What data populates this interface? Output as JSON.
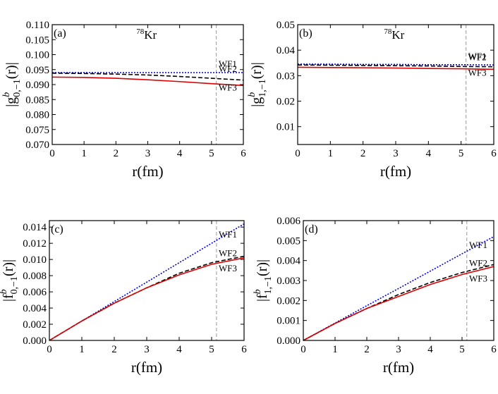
{
  "chart_data": [
    {
      "type": "line",
      "panel": "(a)",
      "annotation": {
        "sup": "78",
        "text": "Kr"
      },
      "ylabel": {
        "base": "|g",
        "sup": "b",
        "sub": "0,−1",
        "rest": "(r)|"
      },
      "xlabel": "r(fm)",
      "x": [
        0,
        1,
        2,
        3,
        4,
        5,
        6
      ],
      "xlim": [
        0,
        6
      ],
      "xticks": [
        0,
        1,
        2,
        3,
        4,
        5,
        6
      ],
      "ylim": [
        0.07,
        0.11
      ],
      "yticks": [
        {
          "value": 0.07,
          "label": "0.070"
        },
        0.075,
        {
          "value": 0.08,
          "label": "0.080"
        },
        0.085,
        {
          "value": 0.09,
          "label": "0.090"
        },
        0.095,
        {
          "value": 0.1,
          "label": "0.100"
        },
        0.105,
        {
          "value": 0.11,
          "label": "0.110"
        }
      ],
      "vline": 5.15,
      "series": [
        {
          "name": "WF1",
          "color": "#0000dd",
          "style": "dotted",
          "values": [
            0.094,
            0.094,
            0.094,
            0.094,
            0.094,
            0.094,
            0.094
          ]
        },
        {
          "name": "WF2",
          "color": "#000000",
          "style": "dashed",
          "values": [
            0.0938,
            0.0937,
            0.0935,
            0.0932,
            0.0927,
            0.0921,
            0.0915
          ]
        },
        {
          "name": "WF3",
          "color": "#dd0000",
          "style": "solid",
          "values": [
            0.0925,
            0.0924,
            0.0921,
            0.0916,
            0.091,
            0.0903,
            0.0897
          ]
        }
      ]
    },
    {
      "type": "line",
      "panel": "(b)",
      "annotation": {
        "sup": "78",
        "text": "Kr"
      },
      "ylabel": {
        "base": "|g",
        "sup": "b",
        "sub": "1,−1",
        "rest": "(r)|"
      },
      "xlabel": "r(fm)",
      "x": [
        0,
        1,
        2,
        3,
        4,
        5,
        6
      ],
      "xlim": [
        0,
        6
      ],
      "xticks": [
        0,
        1,
        2,
        3,
        4,
        5,
        6
      ],
      "ylim": [
        0.003,
        0.05
      ],
      "yticks": [
        0.01,
        0.02,
        0.03,
        0.04,
        0.05
      ],
      "vline": 5.15,
      "series": [
        {
          "name": "WF1",
          "color": "#0000dd",
          "style": "dotted",
          "values": [
            0.0345,
            0.0345,
            0.0344,
            0.0344,
            0.0343,
            0.0343,
            0.0342
          ]
        },
        {
          "name": "WF2",
          "color": "#000000",
          "style": "dashed",
          "values": [
            0.0342,
            0.0341,
            0.034,
            0.0339,
            0.0338,
            0.0336,
            0.0335
          ]
        },
        {
          "name": "WF3",
          "color": "#dd0000",
          "style": "solid",
          "values": [
            0.0333,
            0.0332,
            0.0331,
            0.033,
            0.0328,
            0.0327,
            0.0325
          ]
        }
      ]
    },
    {
      "type": "line",
      "panel": "(c)",
      "ylabel": {
        "base": "|f",
        "sup": "b",
        "sub": "0,−1",
        "rest": "(r)|"
      },
      "xlabel": "r(fm)",
      "x": [
        0,
        1,
        2,
        3,
        4,
        5,
        6
      ],
      "xlim": [
        0,
        6
      ],
      "xticks": [
        0,
        1,
        2,
        3,
        4,
        5,
        6
      ],
      "ylim": [
        0,
        0.0148
      ],
      "yticks": [
        {
          "value": 0,
          "label": "0.000"
        },
        0.002,
        0.004,
        0.006,
        0.008,
        {
          "value": 0.01,
          "label": "0.010"
        },
        0.012,
        0.014
      ],
      "vline": 5.15,
      "series": [
        {
          "name": "WF1",
          "color": "#0000dd",
          "style": "dotted",
          "values": [
            0,
            0.0024,
            0.0048,
            0.0072,
            0.0096,
            0.012,
            0.0144
          ]
        },
        {
          "name": "WF2",
          "color": "#000000",
          "style": "dashed",
          "values": [
            0,
            0.0024,
            0.0046,
            0.0065,
            0.0083,
            0.0096,
            0.0104
          ]
        },
        {
          "name": "WF3",
          "color": "#dd0000",
          "style": "solid",
          "values": [
            0,
            0.0024,
            0.0046,
            0.0065,
            0.0081,
            0.0094,
            0.0102
          ]
        }
      ]
    },
    {
      "type": "line",
      "panel": "(d)",
      "ylabel": {
        "base": "|f",
        "sup": "b",
        "sub": "1,−1",
        "rest": "(r)|"
      },
      "xlabel": "r(fm)",
      "x": [
        0,
        1,
        2,
        3,
        4,
        5,
        6
      ],
      "xlim": [
        0,
        6
      ],
      "xticks": [
        0,
        1,
        2,
        3,
        4,
        5,
        6
      ],
      "ylim": [
        0,
        0.006
      ],
      "yticks": [
        {
          "value": 0,
          "label": "0.000"
        },
        0.001,
        0.002,
        0.003,
        0.004,
        0.005,
        0.006
      ],
      "vline": 5.15,
      "series": [
        {
          "name": "WF1",
          "color": "#0000dd",
          "style": "dotted",
          "values": [
            0,
            0.00087,
            0.00174,
            0.0026,
            0.00347,
            0.00434,
            0.0052
          ]
        },
        {
          "name": "WF2",
          "color": "#000000",
          "style": "dashed",
          "values": [
            0,
            0.00085,
            0.0016,
            0.0023,
            0.0029,
            0.0034,
            0.0038
          ]
        },
        {
          "name": "WF3",
          "color": "#dd0000",
          "style": "solid",
          "values": [
            0,
            0.00085,
            0.0016,
            0.0022,
            0.0028,
            0.0033,
            0.0037
          ]
        }
      ]
    }
  ]
}
